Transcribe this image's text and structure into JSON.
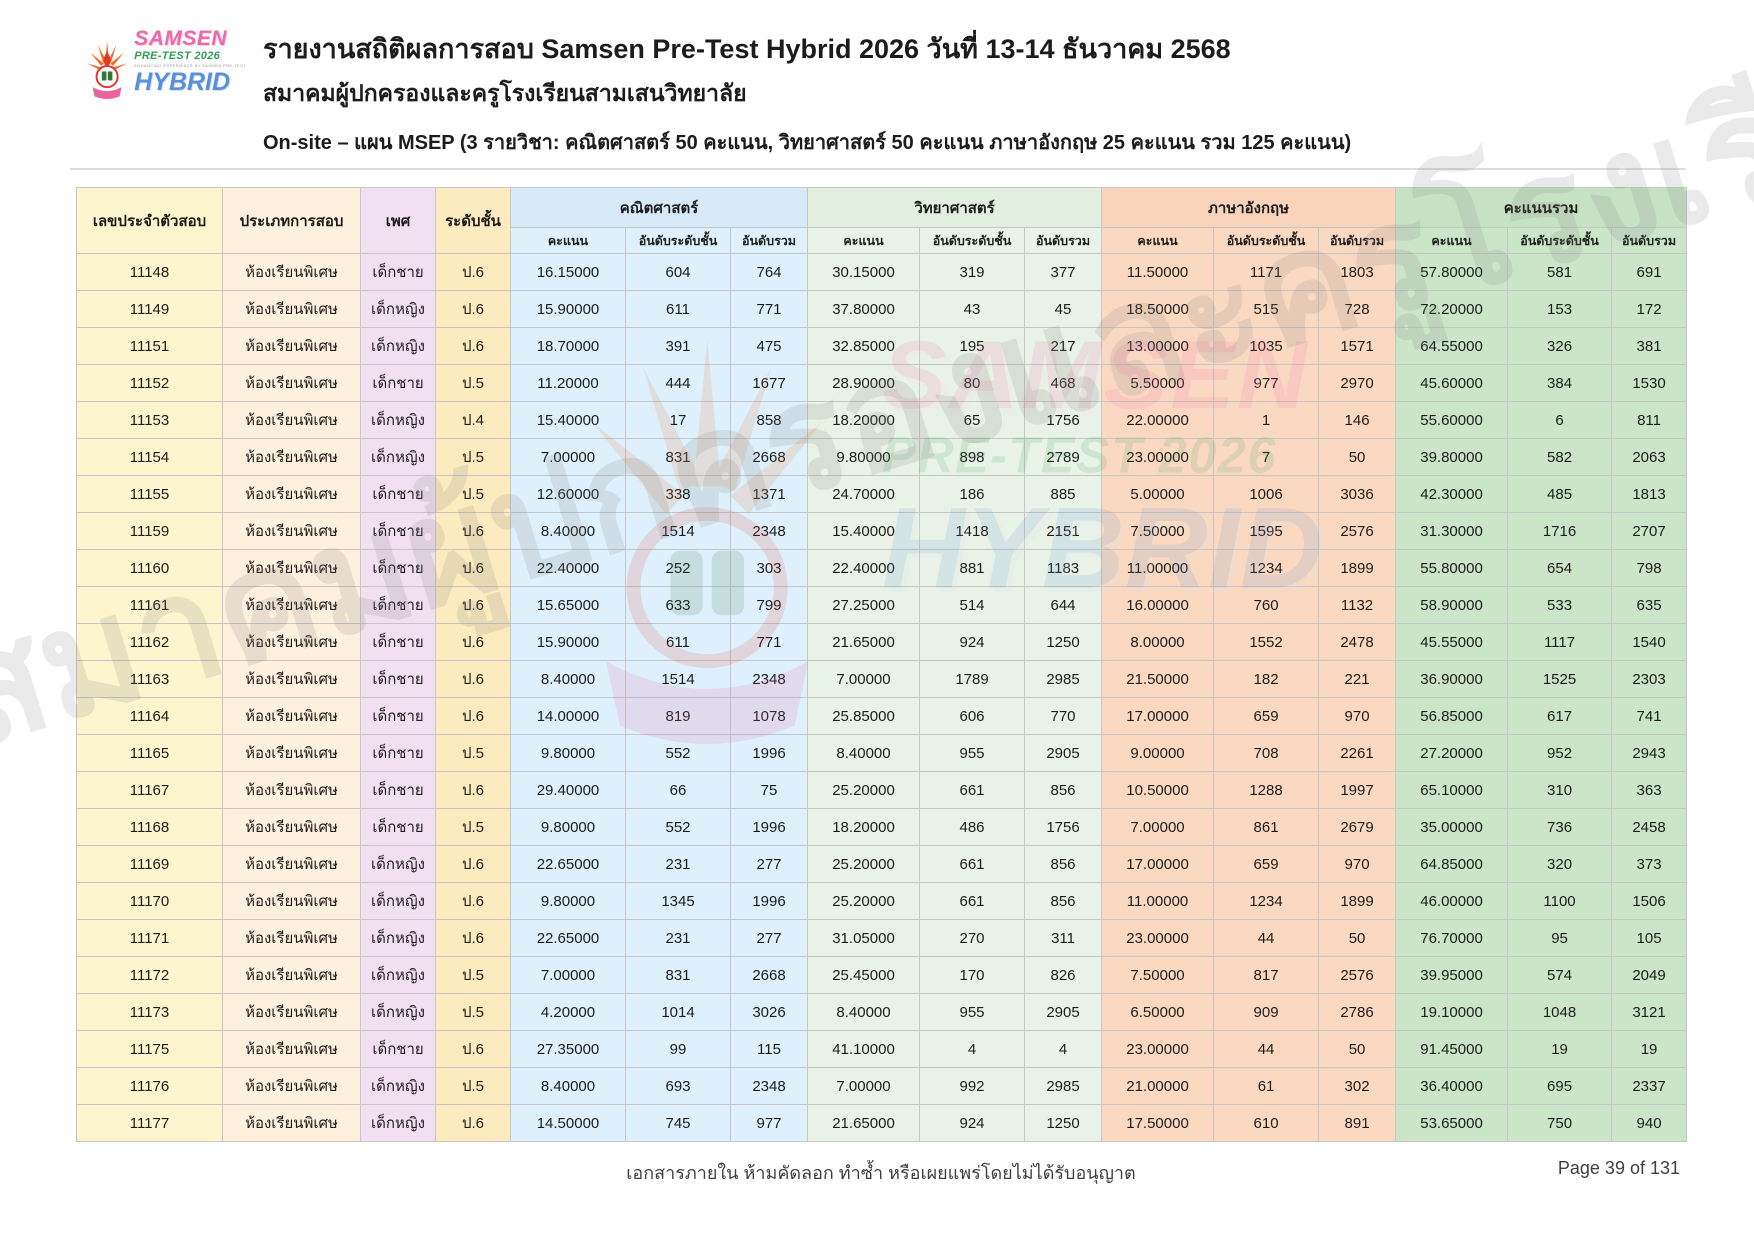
{
  "logo": {
    "line1": "SAMSEN",
    "line2": "PRE-TEST 2026",
    "tagline": "ENHANCING EXPERIENCE BY SAMSEN PRE-TEST",
    "line3": "HYBRID"
  },
  "header": {
    "title": "รายงานสถิติผลการสอบ Samsen Pre-Test Hybrid 2026 วันที่ 13-14 ธันวาคม 2568",
    "subtitle": "สมาคมผู้ปกครองและครูโรงเรียนสามเสนวิทยาลัย",
    "plan_line": "On-site – แผน MSEP  (3 รายวิชา: คณิตศาสตร์ 50 คะแนน, วิทยาศาสตร์ 50 คะแนน ภาษาอังกฤษ 25 คะแนน รวม 125 คะแนน)"
  },
  "watermark": {
    "text": "สมาคมผู้ปกครองและครูโรงเรียนสามเสนวิทยาลัย"
  },
  "table": {
    "columns": {
      "id": "เลขประจำตัวสอบ",
      "exam_type": "ประเภทการสอบ",
      "gender": "เพศ",
      "grade": "ระดับชั้น",
      "groups": [
        "คณิตศาสตร์",
        "วิทยาศาสตร์",
        "ภาษาอังกฤษ",
        "คะแนนรวม"
      ],
      "sub": [
        "คะแนน",
        "อันดับระดับชั้น",
        "อันดับรวม"
      ]
    },
    "rows": [
      [
        "11148",
        "ห้องเรียนพิเศษ",
        "เด็กชาย",
        "ป.6",
        "16.15000",
        "604",
        "764",
        "30.15000",
        "319",
        "377",
        "11.50000",
        "1171",
        "1803",
        "57.80000",
        "581",
        "691"
      ],
      [
        "11149",
        "ห้องเรียนพิเศษ",
        "เด็กหญิง",
        "ป.6",
        "15.90000",
        "611",
        "771",
        "37.80000",
        "43",
        "45",
        "18.50000",
        "515",
        "728",
        "72.20000",
        "153",
        "172"
      ],
      [
        "11151",
        "ห้องเรียนพิเศษ",
        "เด็กหญิง",
        "ป.6",
        "18.70000",
        "391",
        "475",
        "32.85000",
        "195",
        "217",
        "13.00000",
        "1035",
        "1571",
        "64.55000",
        "326",
        "381"
      ],
      [
        "11152",
        "ห้องเรียนพิเศษ",
        "เด็กชาย",
        "ป.5",
        "11.20000",
        "444",
        "1677",
        "28.90000",
        "80",
        "468",
        "5.50000",
        "977",
        "2970",
        "45.60000",
        "384",
        "1530"
      ],
      [
        "11153",
        "ห้องเรียนพิเศษ",
        "เด็กหญิง",
        "ป.4",
        "15.40000",
        "17",
        "858",
        "18.20000",
        "65",
        "1756",
        "22.00000",
        "1",
        "146",
        "55.60000",
        "6",
        "811"
      ],
      [
        "11154",
        "ห้องเรียนพิเศษ",
        "เด็กหญิง",
        "ป.5",
        "7.00000",
        "831",
        "2668",
        "9.80000",
        "898",
        "2789",
        "23.00000",
        "7",
        "50",
        "39.80000",
        "582",
        "2063"
      ],
      [
        "11155",
        "ห้องเรียนพิเศษ",
        "เด็กชาย",
        "ป.5",
        "12.60000",
        "338",
        "1371",
        "24.70000",
        "186",
        "885",
        "5.00000",
        "1006",
        "3036",
        "42.30000",
        "485",
        "1813"
      ],
      [
        "11159",
        "ห้องเรียนพิเศษ",
        "เด็กชาย",
        "ป.6",
        "8.40000",
        "1514",
        "2348",
        "15.40000",
        "1418",
        "2151",
        "7.50000",
        "1595",
        "2576",
        "31.30000",
        "1716",
        "2707"
      ],
      [
        "11160",
        "ห้องเรียนพิเศษ",
        "เด็กชาย",
        "ป.6",
        "22.40000",
        "252",
        "303",
        "22.40000",
        "881",
        "1183",
        "11.00000",
        "1234",
        "1899",
        "55.80000",
        "654",
        "798"
      ],
      [
        "11161",
        "ห้องเรียนพิเศษ",
        "เด็กชาย",
        "ป.6",
        "15.65000",
        "633",
        "799",
        "27.25000",
        "514",
        "644",
        "16.00000",
        "760",
        "1132",
        "58.90000",
        "533",
        "635"
      ],
      [
        "11162",
        "ห้องเรียนพิเศษ",
        "เด็กชาย",
        "ป.6",
        "15.90000",
        "611",
        "771",
        "21.65000",
        "924",
        "1250",
        "8.00000",
        "1552",
        "2478",
        "45.55000",
        "1117",
        "1540"
      ],
      [
        "11163",
        "ห้องเรียนพิเศษ",
        "เด็กชาย",
        "ป.6",
        "8.40000",
        "1514",
        "2348",
        "7.00000",
        "1789",
        "2985",
        "21.50000",
        "182",
        "221",
        "36.90000",
        "1525",
        "2303"
      ],
      [
        "11164",
        "ห้องเรียนพิเศษ",
        "เด็กชาย",
        "ป.6",
        "14.00000",
        "819",
        "1078",
        "25.85000",
        "606",
        "770",
        "17.00000",
        "659",
        "970",
        "56.85000",
        "617",
        "741"
      ],
      [
        "11165",
        "ห้องเรียนพิเศษ",
        "เด็กชาย",
        "ป.5",
        "9.80000",
        "552",
        "1996",
        "8.40000",
        "955",
        "2905",
        "9.00000",
        "708",
        "2261",
        "27.20000",
        "952",
        "2943"
      ],
      [
        "11167",
        "ห้องเรียนพิเศษ",
        "เด็กชาย",
        "ป.6",
        "29.40000",
        "66",
        "75",
        "25.20000",
        "661",
        "856",
        "10.50000",
        "1288",
        "1997",
        "65.10000",
        "310",
        "363"
      ],
      [
        "11168",
        "ห้องเรียนพิเศษ",
        "เด็กชาย",
        "ป.5",
        "9.80000",
        "552",
        "1996",
        "18.20000",
        "486",
        "1756",
        "7.00000",
        "861",
        "2679",
        "35.00000",
        "736",
        "2458"
      ],
      [
        "11169",
        "ห้องเรียนพิเศษ",
        "เด็กหญิง",
        "ป.6",
        "22.65000",
        "231",
        "277",
        "25.20000",
        "661",
        "856",
        "17.00000",
        "659",
        "970",
        "64.85000",
        "320",
        "373"
      ],
      [
        "11170",
        "ห้องเรียนพิเศษ",
        "เด็กหญิง",
        "ป.6",
        "9.80000",
        "1345",
        "1996",
        "25.20000",
        "661",
        "856",
        "11.00000",
        "1234",
        "1899",
        "46.00000",
        "1100",
        "1506"
      ],
      [
        "11171",
        "ห้องเรียนพิเศษ",
        "เด็กหญิง",
        "ป.6",
        "22.65000",
        "231",
        "277",
        "31.05000",
        "270",
        "311",
        "23.00000",
        "44",
        "50",
        "76.70000",
        "95",
        "105"
      ],
      [
        "11172",
        "ห้องเรียนพิเศษ",
        "เด็กหญิง",
        "ป.5",
        "7.00000",
        "831",
        "2668",
        "25.45000",
        "170",
        "826",
        "7.50000",
        "817",
        "2576",
        "39.95000",
        "574",
        "2049"
      ],
      [
        "11173",
        "ห้องเรียนพิเศษ",
        "เด็กหญิง",
        "ป.5",
        "4.20000",
        "1014",
        "3026",
        "8.40000",
        "955",
        "2905",
        "6.50000",
        "909",
        "2786",
        "19.10000",
        "1048",
        "3121"
      ],
      [
        "11175",
        "ห้องเรียนพิเศษ",
        "เด็กชาย",
        "ป.6",
        "27.35000",
        "99",
        "115",
        "41.10000",
        "4",
        "4",
        "23.00000",
        "44",
        "50",
        "91.45000",
        "19",
        "19"
      ],
      [
        "11176",
        "ห้องเรียนพิเศษ",
        "เด็กหญิง",
        "ป.5",
        "8.40000",
        "693",
        "2348",
        "7.00000",
        "992",
        "2985",
        "21.00000",
        "61",
        "302",
        "36.40000",
        "695",
        "2337"
      ],
      [
        "11177",
        "ห้องเรียนพิเศษ",
        "เด็กหญิง",
        "ป.6",
        "14.50000",
        "745",
        "977",
        "21.65000",
        "924",
        "1250",
        "17.50000",
        "610",
        "891",
        "53.65000",
        "750",
        "940"
      ]
    ]
  },
  "footer": {
    "notice": "เอกสารภายใน ห้ามคัดลอก ทำซ้ำ หรือเผยแพร่โดยไม่ได้รับอนุญาต",
    "page": "Page 39 of 131"
  },
  "colors": {
    "col_id": "#fcf5cd",
    "col_type": "#fdf0dd",
    "col_gender": "#f1dff2",
    "col_grade": "#fcebbf",
    "math": "#def0fb",
    "science": "#e9f2e6",
    "english": "#fbd9c1",
    "total": "#cbe5c9",
    "border": "#c6c6c6",
    "logo_pink": "#f066ad",
    "logo_green": "#2f9e54",
    "logo_blue": "#5b8fd9"
  }
}
